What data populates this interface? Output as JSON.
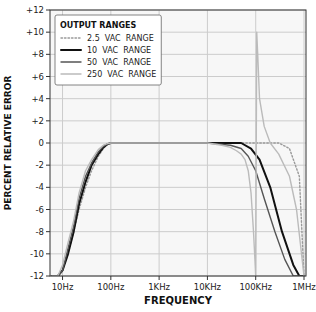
{
  "chart_data": {
    "type": "line",
    "xlabel": "FREQUENCY",
    "ylabel": "PERCENT RELATIVE ERROR",
    "legend_title": "OUTPUT RANGES",
    "log": "x",
    "grid": true,
    "legend": "upper left",
    "xlim": [
      5.5,
      1100000
    ],
    "ylim": [
      -12,
      12
    ],
    "xticks": [
      {
        "value": 10,
        "label": "10Hz"
      },
      {
        "value": 100,
        "label": "100Hz"
      },
      {
        "value": 1000,
        "label": "1KHz"
      },
      {
        "value": 10000,
        "label": "10KHz"
      },
      {
        "value": 100000,
        "label": "100KHz"
      },
      {
        "value": 1000000,
        "label": "1MHz"
      }
    ],
    "yticks": [
      -12,
      -10,
      -8,
      -6,
      -4,
      -2,
      0,
      {
        "value": 2,
        "label": "+2"
      },
      {
        "value": 4,
        "label": "+4"
      },
      {
        "value": 6,
        "label": "+6"
      },
      {
        "value": 8,
        "label": "+8"
      },
      {
        "value": 10,
        "label": "+10"
      },
      {
        "value": 12,
        "label": "+12"
      }
    ],
    "series": [
      {
        "name": "2.5  VAC  RANGE",
        "color": "#999999",
        "line_style": "dotted",
        "x": [
          6,
          8,
          10,
          13,
          17,
          22,
          30,
          40,
          55,
          70,
          85,
          100,
          200,
          500,
          1000,
          5000,
          10000,
          50000,
          100000,
          300000,
          500000,
          800000,
          1000000
        ],
        "values": [
          -12,
          -12,
          -11.5,
          -10,
          -8,
          -6,
          -4,
          -2.5,
          -1.2,
          -0.5,
          -0.1,
          0,
          0,
          0,
          0,
          0,
          0,
          0,
          0,
          0,
          -0.5,
          -3,
          -12
        ]
      },
      {
        "name": "10  VAC  RANGE",
        "color": "#111111",
        "line_style": "solid",
        "x": [
          6,
          8,
          10,
          13,
          17,
          22,
          30,
          40,
          55,
          70,
          85,
          100,
          200,
          500,
          1000,
          5000,
          10000,
          50000,
          80000,
          120000,
          200000,
          350000,
          600000,
          800000,
          1000000
        ],
        "values": [
          -12,
          -12,
          -11.5,
          -10,
          -8,
          -5.5,
          -3.5,
          -2,
          -1,
          -0.4,
          -0.1,
          0,
          0,
          0,
          0,
          0,
          0,
          0,
          -0.5,
          -1.5,
          -4,
          -8,
          -11,
          -12,
          -12
        ]
      },
      {
        "name": "50  VAC  RANGE",
        "color": "#555555",
        "line_style": "solid",
        "x": [
          6,
          8,
          10,
          13,
          17,
          22,
          30,
          40,
          55,
          70,
          85,
          100,
          200,
          500,
          1000,
          5000,
          10000,
          30000,
          50000,
          70000,
          100000,
          150000,
          250000,
          400000,
          600000,
          800000,
          1000000
        ],
        "values": [
          -12,
          -12,
          -11.5,
          -9.5,
          -7.5,
          -5,
          -3,
          -1.8,
          -0.8,
          -0.3,
          -0.1,
          0,
          0,
          0,
          0,
          0,
          0,
          -0.2,
          -0.5,
          -1.2,
          -2.5,
          -5,
          -8,
          -10.5,
          -12,
          -12,
          -12
        ]
      },
      {
        "name": "250  VAC  RANGE",
        "color": "#bbbbbb",
        "line_style": "solid",
        "x": [
          6,
          8,
          10,
          13,
          17,
          22,
          30,
          40,
          55,
          70,
          85,
          100,
          200,
          500,
          1000,
          5000,
          10000,
          20000,
          30000,
          40000,
          50000,
          60000,
          70000,
          80000,
          90000,
          95000,
          100000,
          105000,
          110000,
          120000,
          150000,
          200000,
          300000,
          500000,
          700000,
          1000000
        ],
        "values": [
          -12,
          -12,
          -11,
          -9,
          -7,
          -4.5,
          -2.5,
          -1.5,
          -0.6,
          -0.2,
          -0.05,
          0,
          0,
          0,
          0,
          0,
          0,
          -0.2,
          -0.4,
          -0.7,
          -1.0,
          -1.5,
          -2.5,
          -4.5,
          -8,
          -10,
          -12,
          10,
          8,
          4,
          1.5,
          0,
          -1,
          -3,
          -6,
          -12
        ]
      }
    ]
  }
}
